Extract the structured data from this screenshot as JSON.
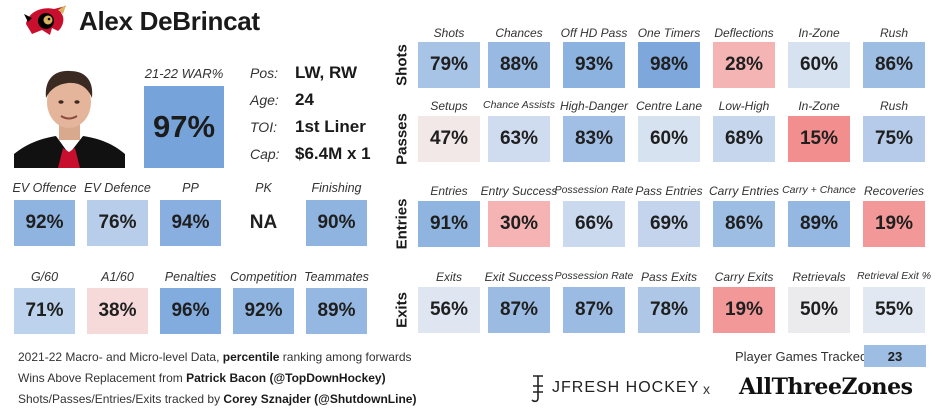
{
  "header": {
    "name": "Alex DeBrincat",
    "logo_icon": "ottawa-senators-logo-icon"
  },
  "photo": {
    "icon": "player-headshot-icon"
  },
  "war": {
    "label": "21-22 WAR%",
    "value": "97%",
    "color": "#76a4da"
  },
  "info": [
    {
      "key": "Pos:",
      "value": "LW, RW"
    },
    {
      "key": "Age:",
      "value": "24"
    },
    {
      "key": "TOI:",
      "value": "1st Liner"
    },
    {
      "key": "Cap:",
      "value": "$6.4M x 1"
    }
  ],
  "chart_data": {
    "type": "table",
    "note": "percentile ranking among forwards",
    "left_rows": [
      [
        {
          "label": "EV Offence",
          "value": "92%",
          "color": "#8fb4e0"
        },
        {
          "label": "EV Defence",
          "value": "76%",
          "color": "#b7cde9"
        },
        {
          "label": "PP",
          "value": "94%",
          "color": "#88afdf"
        },
        {
          "label": "PK",
          "value": "NA",
          "color": "#ffffff"
        },
        {
          "label": "Finishing",
          "value": "90%",
          "color": "#8fb4e0"
        }
      ],
      [
        {
          "label": "G/60",
          "value": "71%",
          "color": "#bdd2ec"
        },
        {
          "label": "A1/60",
          "value": "38%",
          "color": "#f6dada"
        },
        {
          "label": "Penalties",
          "value": "96%",
          "color": "#82abde"
        },
        {
          "label": "Competition",
          "value": "92%",
          "color": "#8fb4e0"
        },
        {
          "label": "Teammates",
          "value": "89%",
          "color": "#95b8e2"
        }
      ]
    ],
    "right_rows": [
      {
        "name": "Shots",
        "cells": [
          {
            "label": "Shots",
            "value": "79%",
            "color": "#a7c3e6"
          },
          {
            "label": "Chances",
            "value": "88%",
            "color": "#97b9e2"
          },
          {
            "label": "Off HD Pass",
            "value": "93%",
            "color": "#8cb2df"
          },
          {
            "label": "One Timers",
            "value": "98%",
            "color": "#7ea8dc"
          },
          {
            "label": "Deflections",
            "value": "28%",
            "color": "#f4b4b4"
          },
          {
            "label": "In-Zone",
            "value": "60%",
            "color": "#d7e2f0"
          },
          {
            "label": "Rush",
            "value": "86%",
            "color": "#9ebde3"
          }
        ]
      },
      {
        "name": "Passes",
        "cells": [
          {
            "label": "Setups",
            "value": "47%",
            "color": "#f3e8e8"
          },
          {
            "label": "Chance Assists",
            "value": "63%",
            "color": "#cfdcef"
          },
          {
            "label": "High-Danger",
            "value": "83%",
            "color": "#a1bfe5"
          },
          {
            "label": "Centre Lane",
            "value": "60%",
            "color": "#d7e2f0"
          },
          {
            "label": "Low-High",
            "value": "68%",
            "color": "#c5d6ed"
          },
          {
            "label": "In-Zone",
            "value": "15%",
            "color": "#f28e8e"
          },
          {
            "label": "Rush",
            "value": "75%",
            "color": "#b5cbe9"
          }
        ]
      },
      {
        "name": "Entries",
        "cells": [
          {
            "label": "Entries",
            "value": "91%",
            "color": "#8fb4e0"
          },
          {
            "label": "Entry Success",
            "value": "30%",
            "color": "#f5b3b3"
          },
          {
            "label": "Possession Rate",
            "value": "66%",
            "color": "#cad9ee"
          },
          {
            "label": "Pass Entries",
            "value": "69%",
            "color": "#c3d4ec"
          },
          {
            "label": "Carry Entries",
            "value": "86%",
            "color": "#9ebde3"
          },
          {
            "label": "Carry + Chance",
            "value": "89%",
            "color": "#95b8e2"
          },
          {
            "label": "Recoveries",
            "value": "19%",
            "color": "#f39898"
          }
        ]
      },
      {
        "name": "Exits",
        "cells": [
          {
            "label": "Exits",
            "value": "56%",
            "color": "#dfe6f1"
          },
          {
            "label": "Exit Success",
            "value": "87%",
            "color": "#9bbbe3"
          },
          {
            "label": "Possession Rate",
            "value": "87%",
            "color": "#9bbbe3"
          },
          {
            "label": "Pass Exits",
            "value": "78%",
            "color": "#aec7e7"
          },
          {
            "label": "Carry Exits",
            "value": "19%",
            "color": "#f39898"
          },
          {
            "label": "Retrievals",
            "value": "50%",
            "color": "#ebebee"
          },
          {
            "label": "Retrieval Exit %",
            "value": "55%",
            "color": "#e1e8f2"
          }
        ]
      }
    ]
  },
  "footer": {
    "line1_pre": "2021-22 Macro- and Micro-level Data, ",
    "line1_bold": "percentile",
    "line1_post": " ranking among forwards",
    "line2_pre": "Wins Above Replacement from ",
    "line2_bold": "Patrick Bacon (@TopDownHockey)",
    "line3_pre": "Shots/Passes/Entries/Exits tracked by ",
    "line3_bold": "Corey Sznajder (@ShutdownLine)"
  },
  "games": {
    "label": "Player Games Tracked:",
    "value": "23"
  },
  "brand": {
    "jfresh": "JFRESH HOCKEY",
    "x": "x",
    "atz": "AllThreeZones",
    "icon": "jfresh-logo-icon"
  }
}
